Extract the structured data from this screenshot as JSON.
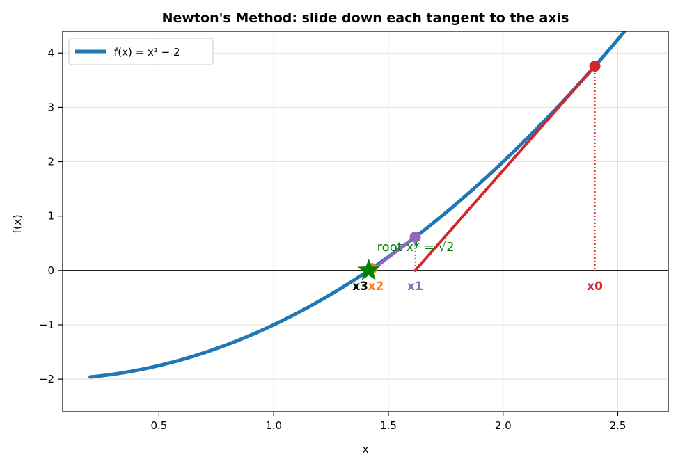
{
  "chart_data": {
    "type": "line",
    "title": "Newton's Method: slide down each tangent to the axis",
    "xlabel": "x",
    "ylabel": "f(x)",
    "xlim": [
      0.08,
      2.72
    ],
    "ylim": [
      -2.6,
      4.4
    ],
    "xticks": [
      0.5,
      1.0,
      1.5,
      2.0,
      2.5
    ],
    "xtick_labels": [
      "0.5",
      "1.0",
      "1.5",
      "2.0",
      "2.5"
    ],
    "yticks": [
      -2,
      -1,
      0,
      1,
      2,
      3,
      4
    ],
    "ytick_labels": [
      "−2",
      "−1",
      "0",
      "1",
      "2",
      "3",
      "4"
    ],
    "grid": true,
    "legend": {
      "placement": "top-left",
      "entries": [
        {
          "label": "f(x) = x² − 2",
          "color": "#1f77b4"
        }
      ]
    },
    "series": [
      {
        "name": "f(x) = x² − 2",
        "color": "#1f77b4",
        "x_range": [
          0.2,
          2.6
        ],
        "function": "x^2 - 2"
      }
    ],
    "iterations": [
      {
        "label": "x0",
        "x": 2.4,
        "y": 3.76,
        "next_x": 1.617,
        "color": "#d62728"
      },
      {
        "label": "x1",
        "x": 1.617,
        "y": 0.614,
        "next_x": 1.427,
        "color": "#9467bd"
      },
      {
        "label": "x2",
        "x": 1.427,
        "y": 0.036,
        "next_x": 1.414,
        "color": "#ff7f0e"
      },
      {
        "label": "x3",
        "x": 1.414,
        "y": 0.0,
        "color": "#000000"
      }
    ],
    "root": {
      "label": "root  x* = √2",
      "x": 1.4142,
      "y": 0.0,
      "color": "#008000"
    }
  }
}
